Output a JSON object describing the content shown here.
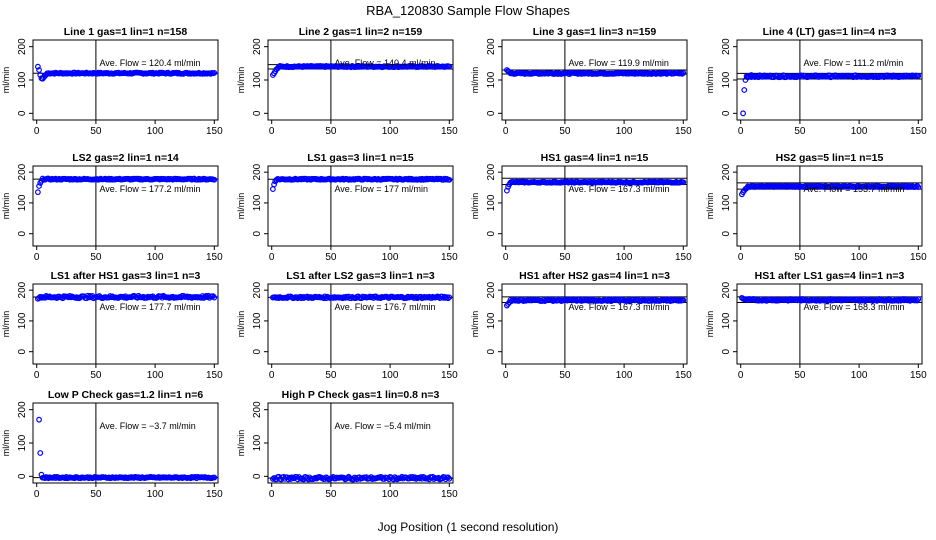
{
  "figure": {
    "title": "RBA_120830  Sample Flow Shapes",
    "xlabel": "Jog Position (1 second resolution)",
    "ylabel": "ml/min"
  },
  "chart_data": [
    {
      "type": "scatter",
      "title": "Line 1 gas=1 lin=1 n=158",
      "xlim": [
        0,
        150
      ],
      "ylim": [
        -20,
        220
      ],
      "xticks": [
        0,
        50,
        100,
        150
      ],
      "yticks": [
        0,
        100,
        200
      ],
      "ave_flow": "120.4",
      "marker_color": "#0000ff",
      "initial_points": [
        [
          1,
          140
        ],
        [
          2,
          130
        ],
        [
          3,
          115
        ],
        [
          4,
          105
        ],
        [
          5,
          104
        ],
        [
          6,
          108
        ],
        [
          7,
          112
        ],
        [
          8,
          116
        ]
      ],
      "steady_value": 120.4,
      "steady_x": [
        9,
        150
      ],
      "steady_noise": 2,
      "hlines": [
        120.4
      ],
      "vline": 50
    },
    {
      "type": "scatter",
      "title": "Line 2 gas=1 lin=2 n=159",
      "xlim": [
        0,
        150
      ],
      "ylim": [
        -20,
        220
      ],
      "xticks": [
        0,
        50,
        100,
        150
      ],
      "yticks": [
        0,
        100,
        200
      ],
      "ave_flow": "140.4",
      "marker_color": "#0000ff",
      "initial_points": [
        [
          1,
          115
        ],
        [
          2,
          120
        ],
        [
          3,
          126
        ],
        [
          4,
          132
        ],
        [
          5,
          135
        ]
      ],
      "steady_value": 140.4,
      "steady_x": [
        6,
        150
      ],
      "steady_noise": 2,
      "hlines": [
        146,
        133
      ],
      "vline": 50
    },
    {
      "type": "scatter",
      "title": "Line 3 gas=1 lin=3 n=159",
      "xlim": [
        0,
        150
      ],
      "ylim": [
        -20,
        220
      ],
      "xticks": [
        0,
        50,
        100,
        150
      ],
      "yticks": [
        0,
        100,
        200
      ],
      "ave_flow": "119.9",
      "marker_color": "#0000ff",
      "initial_points": [
        [
          1,
          130
        ],
        [
          2,
          127
        ],
        [
          3,
          124
        ]
      ],
      "steady_value": 119.9,
      "steady_x": [
        4,
        150
      ],
      "steady_noise": 2,
      "hlines": [
        130,
        118
      ],
      "vline": 50
    },
    {
      "type": "scatter",
      "title": "Line 4 (LT) gas=1 lin=4 n=3",
      "xlim": [
        0,
        150
      ],
      "ylim": [
        -20,
        220
      ],
      "xticks": [
        0,
        50,
        100,
        150
      ],
      "yticks": [
        0,
        100,
        200
      ],
      "ave_flow": "111.2",
      "marker_color": "#0000ff",
      "initial_points": [
        [
          2,
          0
        ],
        [
          3,
          70
        ],
        [
          4,
          100
        ],
        [
          6,
          108
        ],
        [
          9,
          115
        ]
      ],
      "steady_value": 111.2,
      "steady_x": [
        5,
        150
      ],
      "steady_noise": 3,
      "hlines": [
        120,
        103
      ],
      "vline": 50
    },
    {
      "type": "scatter",
      "title": "LS2 gas=2 lin=1 n=14",
      "xlim": [
        0,
        150
      ],
      "ylim": [
        -40,
        220
      ],
      "xticks": [
        0,
        50,
        100,
        150
      ],
      "yticks": [
        0,
        100,
        200
      ],
      "ave_flow": "177.2",
      "marker_color": "#0000ff",
      "initial_points": [
        [
          1,
          135
        ],
        [
          2,
          155
        ],
        [
          3,
          165
        ],
        [
          4,
          172
        ]
      ],
      "steady_value": 177.2,
      "steady_x": [
        5,
        150
      ],
      "steady_noise": 2,
      "hlines": [
        177.2
      ],
      "vline": 50
    },
    {
      "type": "scatter",
      "title": "LS1 gas=3 lin=1 n=15",
      "xlim": [
        0,
        150
      ],
      "ylim": [
        -40,
        220
      ],
      "xticks": [
        0,
        50,
        100,
        150
      ],
      "yticks": [
        0,
        100,
        200
      ],
      "ave_flow": "177",
      "marker_color": "#0000ff",
      "initial_points": [
        [
          1,
          145
        ],
        [
          2,
          160
        ],
        [
          3,
          170
        ],
        [
          4,
          175
        ]
      ],
      "steady_value": 177,
      "steady_x": [
        5,
        150
      ],
      "steady_noise": 2,
      "hlines": [
        177
      ],
      "vline": 50
    },
    {
      "type": "scatter",
      "title": "HS1 gas=4 lin=1 n=15",
      "xlim": [
        0,
        150
      ],
      "ylim": [
        -40,
        220
      ],
      "xticks": [
        0,
        50,
        100,
        150
      ],
      "yticks": [
        0,
        100,
        200
      ],
      "ave_flow": "167.3",
      "marker_color": "#0000ff",
      "initial_points": [
        [
          1,
          140
        ],
        [
          2,
          152
        ],
        [
          3,
          160
        ]
      ],
      "steady_value": 167.3,
      "steady_x": [
        4,
        150
      ],
      "steady_noise": 2,
      "hlines": [
        180,
        160
      ],
      "vline": 50
    },
    {
      "type": "scatter",
      "title": "HS2 gas=5 lin=1 n=15",
      "xlim": [
        0,
        150
      ],
      "ylim": [
        -40,
        220
      ],
      "xticks": [
        0,
        50,
        100,
        150
      ],
      "yticks": [
        0,
        100,
        200
      ],
      "ave_flow": "153.7",
      "marker_color": "#0000ff",
      "initial_points": [
        [
          1,
          128
        ],
        [
          2,
          135
        ],
        [
          3,
          140
        ],
        [
          4,
          145
        ],
        [
          5,
          148
        ]
      ],
      "steady_value": 153.7,
      "steady_x": [
        6,
        150
      ],
      "steady_noise": 2,
      "hlines": [
        165,
        145
      ],
      "vline": 50
    },
    {
      "type": "scatter",
      "title": "LS1 after HS1 gas=3 lin=1 n=3",
      "xlim": [
        0,
        150
      ],
      "ylim": [
        -40,
        220
      ],
      "xticks": [
        0,
        50,
        100,
        150
      ],
      "yticks": [
        0,
        100,
        200
      ],
      "ave_flow": "177.7",
      "marker_color": "#0000ff",
      "initial_points": [
        [
          1,
          172
        ],
        [
          2,
          175
        ]
      ],
      "steady_value": 177.7,
      "steady_x": [
        3,
        150
      ],
      "steady_noise": 4,
      "hlines": [
        177.7
      ],
      "vline": 50
    },
    {
      "type": "scatter",
      "title": "LS1 after LS2 gas=3 lin=1 n=3",
      "xlim": [
        0,
        150
      ],
      "ylim": [
        -40,
        220
      ],
      "xticks": [
        0,
        50,
        100,
        150
      ],
      "yticks": [
        0,
        100,
        200
      ],
      "ave_flow": "176.7",
      "marker_color": "#0000ff",
      "initial_points": [],
      "steady_value": 176.7,
      "steady_x": [
        1,
        150
      ],
      "steady_noise": 3,
      "hlines": [
        176.7
      ],
      "vline": 50
    },
    {
      "type": "scatter",
      "title": "HS1 after HS2 gas=4 lin=1 n=3",
      "xlim": [
        0,
        150
      ],
      "ylim": [
        -40,
        220
      ],
      "xticks": [
        0,
        50,
        100,
        150
      ],
      "yticks": [
        0,
        100,
        200
      ],
      "ave_flow": "167.3",
      "marker_color": "#0000ff",
      "initial_points": [
        [
          1,
          150
        ],
        [
          2,
          155
        ],
        [
          3,
          160
        ]
      ],
      "steady_value": 167.3,
      "steady_x": [
        4,
        150
      ],
      "steady_noise": 3,
      "hlines": [
        178,
        160
      ],
      "vline": 50
    },
    {
      "type": "scatter",
      "title": "HS1 after LS1 gas=4 lin=1 n=3",
      "xlim": [
        0,
        150
      ],
      "ylim": [
        -40,
        220
      ],
      "xticks": [
        0,
        50,
        100,
        150
      ],
      "yticks": [
        0,
        100,
        200
      ],
      "ave_flow": "168.3",
      "marker_color": "#0000ff",
      "initial_points": [
        [
          1,
          175
        ],
        [
          2,
          172
        ],
        [
          3,
          170
        ]
      ],
      "steady_value": 168.3,
      "steady_x": [
        4,
        150
      ],
      "steady_noise": 3,
      "hlines": [
        178,
        160
      ],
      "vline": 50
    },
    {
      "type": "scatter",
      "title": "Low P Check gas=1.2 lin=1 n=6",
      "xlim": [
        0,
        150
      ],
      "ylim": [
        -20,
        220
      ],
      "xticks": [
        0,
        50,
        100,
        150
      ],
      "yticks": [
        0,
        100,
        200
      ],
      "ave_flow": "−3.7",
      "marker_color": "#0000ff",
      "initial_points": [
        [
          2,
          170
        ],
        [
          3,
          70
        ],
        [
          4,
          5
        ]
      ],
      "steady_value": -3.7,
      "steady_x": [
        5,
        150
      ],
      "steady_noise": 2,
      "hlines": [
        -3.7
      ],
      "vline": 50
    },
    {
      "type": "scatter",
      "title": "High P Check gas=1 lin=0.8 n=3",
      "xlim": [
        0,
        150
      ],
      "ylim": [
        -20,
        220
      ],
      "xticks": [
        0,
        50,
        100,
        150
      ],
      "yticks": [
        0,
        100,
        200
      ],
      "ave_flow": "−5.4",
      "marker_color": "#0000ff",
      "initial_points": [],
      "steady_value": -5.4,
      "steady_x": [
        1,
        150
      ],
      "steady_noise": 4,
      "hlines": [
        -5.4
      ],
      "vline": 50
    }
  ]
}
